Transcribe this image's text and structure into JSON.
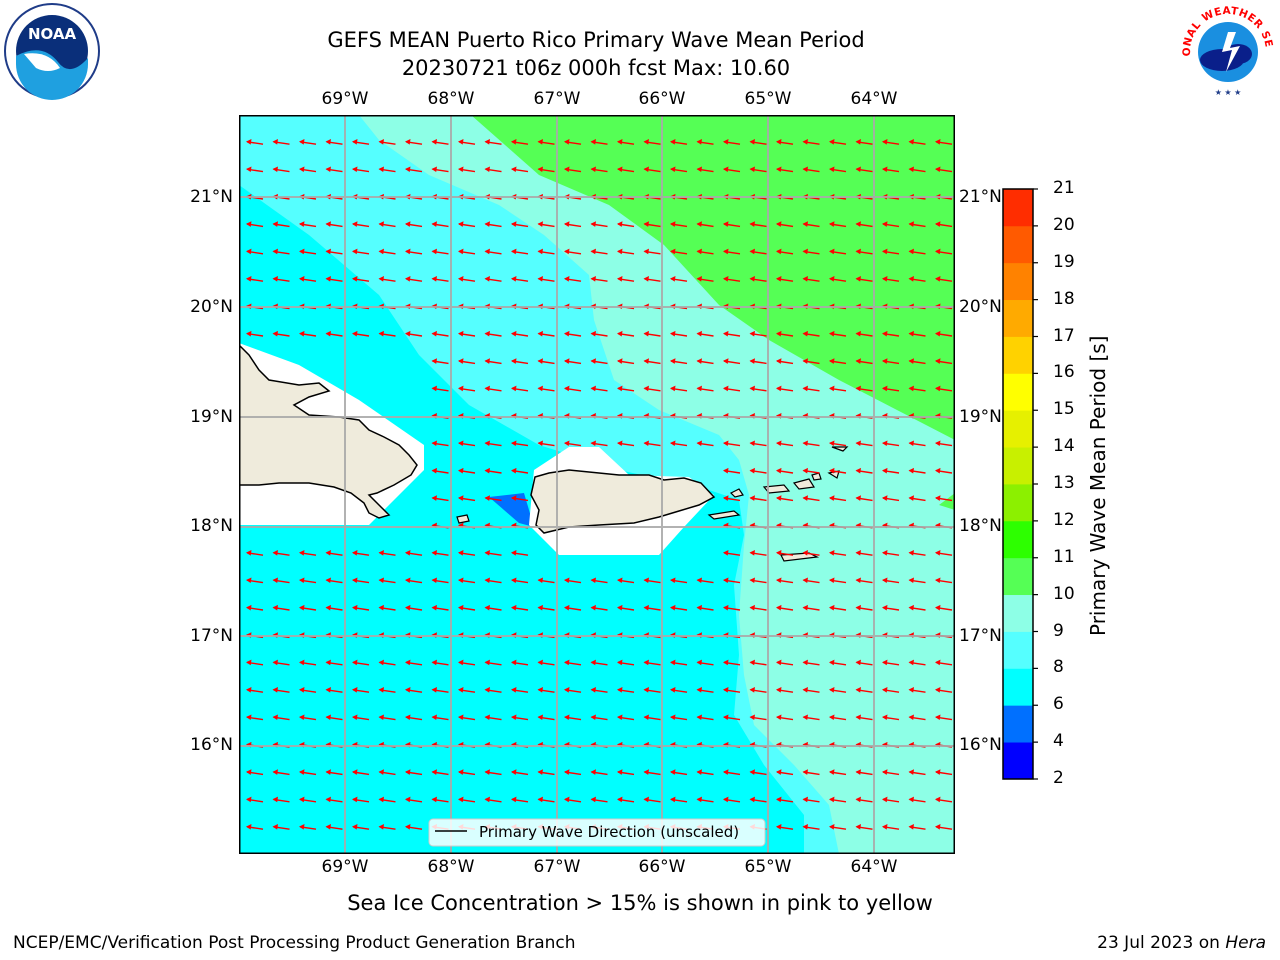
{
  "title": {
    "line1": "GEFS MEAN Puerto Rico Primary Wave Mean Period",
    "line2": "20230721 t06z 000h fcst   Max: 10.60"
  },
  "map": {
    "lon_labels": [
      "69°W",
      "68°W",
      "67°W",
      "66°W",
      "65°W",
      "64°W"
    ],
    "lat_labels": [
      "21°N",
      "20°N",
      "19°N",
      "18°N",
      "17°N",
      "16°N"
    ],
    "legend_label": "Primary Wave Direction (unscaled)",
    "arrow_color": "#ff0000",
    "land_color": "#efebdc"
  },
  "colorbar": {
    "title": "Primary Wave Mean Period [s]",
    "ticks": [
      "2",
      "4",
      "6",
      "8",
      "9",
      "10",
      "11",
      "12",
      "13",
      "14",
      "15",
      "16",
      "17",
      "18",
      "19",
      "20",
      "21"
    ],
    "colors": [
      "#0000ff",
      "#0070ff",
      "#00ffff",
      "#55ffff",
      "#8dffe6",
      "#55ff55",
      "#2dff00",
      "#8cf000",
      "#c8f000",
      "#e6f000",
      "#ffff00",
      "#ffd200",
      "#ffaa00",
      "#ff8200",
      "#ff5a00",
      "#ff2d00"
    ]
  },
  "note": "Sea Ice Concentration > 15% is shown in pink to yellow",
  "footer": {
    "left": "NCEP/EMC/Verification Post Processing Product Generation Branch",
    "date": "23 Jul 2023 on ",
    "host": "Hera"
  },
  "logos": {
    "noaa_text": "NOAA",
    "nws_text": "NATIONAL WEATHER SERVICE"
  }
}
